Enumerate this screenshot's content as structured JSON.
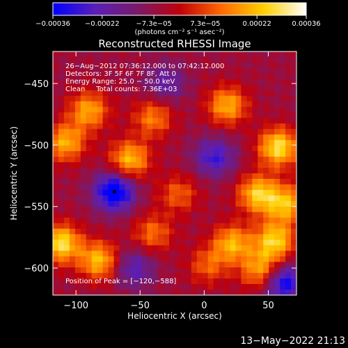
{
  "chart_data": {
    "type": "heatmap",
    "title": "Reconstructed RHESSI Image",
    "xlabel": "Heliocentric X (arcsec)",
    "ylabel": "Heliocentric Y (arcsec)",
    "xlim": [
      -118,
      72
    ],
    "ylim": [
      -622,
      -424
    ],
    "xticks": [
      -100,
      -50,
      0,
      50
    ],
    "xtick_labels": [
      "−100",
      "−50",
      "0",
      "50"
    ],
    "yticks": [
      -450,
      -500,
      -550,
      -600
    ],
    "ytick_labels": [
      "−450",
      "−500",
      "−550",
      "−600"
    ],
    "colorbar": {
      "min": -0.00036,
      "max": 0.00036,
      "ticks": [
        -0.00036,
        -0.00022,
        -7.3e-05,
        7.3e-05,
        0.00022,
        0.00036
      ],
      "tick_labels": [
        "−0.00036",
        "−0.00022",
        "−7.3e−05",
        "7.3e−05",
        "0.00022",
        "0.00036"
      ],
      "unit_label": "(photons cm⁻² s⁻¹ asec⁻²)",
      "colormap": [
        "#0000ff",
        "#5a1fb8",
        "#7a1a6a",
        "#c0000a",
        "#ff6a00",
        "#ffd000",
        "#ffffff"
      ]
    },
    "annotations": [
      "26−Aug−2012 07:36:12.000 to 07:42:12.000",
      "Detectors: 3F 5F 6F 7F 8F, Att 0",
      "Energy Range: 25.0 − 50.0 keV",
      "Clean     Total counts: 7.36E+03"
    ],
    "peak_label": "Position of Peak = [−120,−588]",
    "peak_position": [
      -120,
      -588
    ],
    "minimum_marker": [
      -70,
      -538
    ],
    "features": [
      {
        "x": -58,
        "y": -512,
        "value": 0.00028
      },
      {
        "x": -90,
        "y": -472,
        "value": 0.00025
      },
      {
        "x": -40,
        "y": -478,
        "value": 0.0002
      },
      {
        "x": 18,
        "y": -468,
        "value": 0.00026
      },
      {
        "x": 58,
        "y": -502,
        "value": 0.00034
      },
      {
        "x": 42,
        "y": -540,
        "value": 0.0003
      },
      {
        "x": 64,
        "y": -548,
        "value": 0.00027
      },
      {
        "x": -20,
        "y": -540,
        "value": 0.00016
      },
      {
        "x": -108,
        "y": -498,
        "value": 0.00026
      },
      {
        "x": -112,
        "y": -580,
        "value": 0.00034
      },
      {
        "x": -82,
        "y": -594,
        "value": 0.00028
      },
      {
        "x": -40,
        "y": -572,
        "value": 0.00018
      },
      {
        "x": 22,
        "y": -580,
        "value": 0.00026
      },
      {
        "x": 55,
        "y": -578,
        "value": 0.00031
      },
      {
        "x": 44,
        "y": -602,
        "value": 0.00025
      },
      {
        "x": 3,
        "y": -598,
        "value": 0.00016
      },
      {
        "x": -70,
        "y": -538,
        "value": -0.00036
      },
      {
        "x": 8,
        "y": -510,
        "value": -0.00022
      },
      {
        "x": -55,
        "y": -600,
        "value": -0.00018
      },
      {
        "x": 62,
        "y": -612,
        "value": -0.0003
      },
      {
        "x": -30,
        "y": -450,
        "value": -0.00015
      }
    ],
    "grid": false
  },
  "timestamp": "13−May−2022 21:13"
}
